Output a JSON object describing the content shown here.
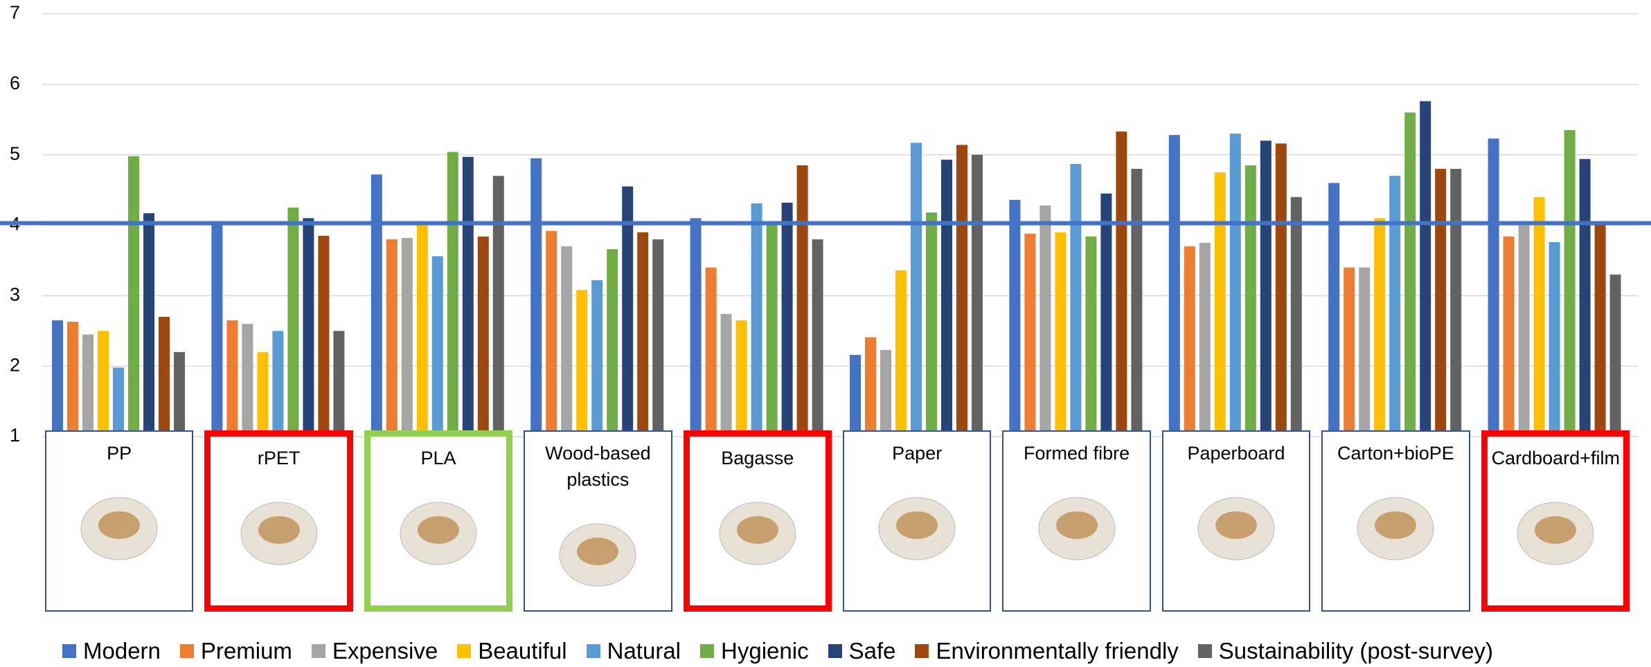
{
  "chart_data": {
    "type": "bar",
    "categories": [
      "PP",
      "rPET",
      "PLA",
      "Wood-based plastics",
      "Bagasse",
      "Paper",
      "Formed fibre",
      "Paperboard",
      "Carton+bioPE",
      "Cardboard+film"
    ],
    "box_colors": [
      "#2f5597",
      "#ff0000",
      "#92d050",
      "#2f5597",
      "#ff0000",
      "#2f5597",
      "#2f5597",
      "#2f5597",
      "#2f5597",
      "#ff0000"
    ],
    "series": [
      {
        "name": "Modern",
        "color": "#4472c4",
        "values": [
          2.65,
          4.03,
          4.72,
          4.95,
          4.1,
          2.16,
          4.36,
          5.28,
          4.6,
          5.23
        ]
      },
      {
        "name": "Premium",
        "color": "#ed7d31",
        "values": [
          2.63,
          2.65,
          3.8,
          3.92,
          3.4,
          2.41,
          3.88,
          3.7,
          3.4,
          3.84
        ]
      },
      {
        "name": "Expensive",
        "color": "#a5a5a5",
        "values": [
          2.45,
          2.6,
          3.82,
          3.7,
          2.74,
          2.23,
          4.28,
          3.75,
          3.4,
          4.0
        ]
      },
      {
        "name": "Beautiful",
        "color": "#ffc000",
        "values": [
          2.5,
          2.2,
          4.0,
          3.08,
          2.65,
          3.36,
          3.9,
          4.75,
          4.1,
          4.4
        ]
      },
      {
        "name": "Natural",
        "color": "#5b9bd5",
        "values": [
          1.98,
          2.5,
          3.56,
          3.22,
          4.31,
          5.17,
          4.87,
          5.3,
          4.7,
          3.76
        ]
      },
      {
        "name": "Hygienic",
        "color": "#70ad47",
        "values": [
          4.98,
          4.25,
          5.04,
          3.66,
          4.0,
          4.18,
          3.84,
          4.85,
          5.6,
          5.35
        ]
      },
      {
        "name": "Safe",
        "color": "#264478",
        "values": [
          4.17,
          4.1,
          4.97,
          4.55,
          4.32,
          4.93,
          4.45,
          5.2,
          5.76,
          4.94
        ]
      },
      {
        "name": "Environmentally friendly",
        "color": "#9e480e",
        "values": [
          2.7,
          3.85,
          3.84,
          3.9,
          4.85,
          5.14,
          5.33,
          5.16,
          4.8,
          4.0
        ]
      },
      {
        "name": "Sustainability (post-survey)",
        "color": "#636363",
        "values": [
          2.2,
          2.5,
          4.7,
          3.8,
          3.8,
          5.0,
          4.8,
          4.4,
          4.8,
          3.3
        ]
      }
    ],
    "reference_line": 4.03,
    "reference_color": "#4472c4",
    "ylim": [
      1,
      7
    ],
    "yticks": [
      1,
      2,
      3,
      4,
      5,
      6,
      7
    ],
    "grid": true
  }
}
